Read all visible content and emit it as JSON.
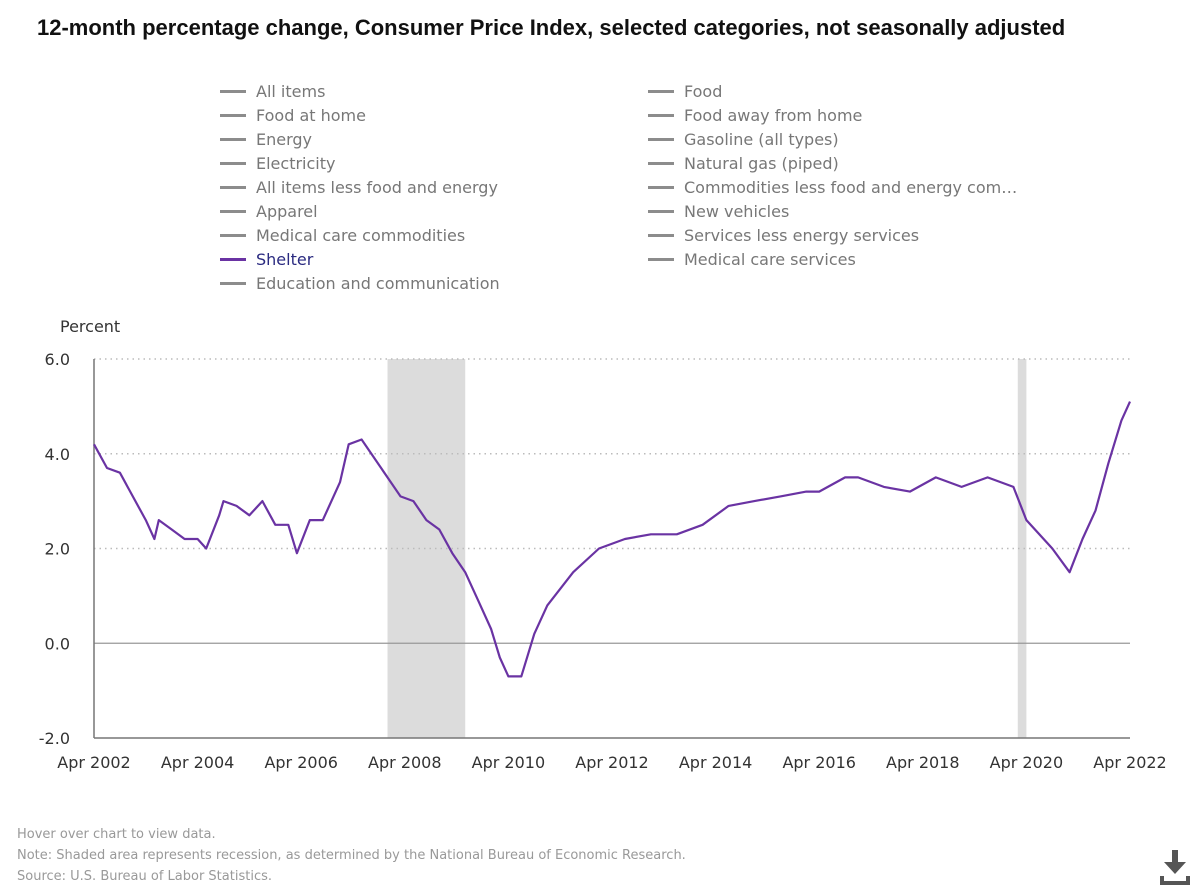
{
  "title": "12-month percentage change, Consumer Price Index, selected categories, not seasonally adjusted",
  "legend": {
    "col1": [
      {
        "label": "All items",
        "active": false
      },
      {
        "label": "Food at home",
        "active": false
      },
      {
        "label": "Energy",
        "active": false
      },
      {
        "label": "Electricity",
        "active": false
      },
      {
        "label": "All items less food and energy",
        "active": false
      },
      {
        "label": "Apparel",
        "active": false
      },
      {
        "label": "Medical care commodities",
        "active": false
      },
      {
        "label": "Shelter",
        "active": true
      },
      {
        "label": "Education and communication",
        "active": false
      }
    ],
    "col2": [
      {
        "label": "Food",
        "active": false
      },
      {
        "label": "Food away from home",
        "active": false
      },
      {
        "label": "Gasoline (all types)",
        "active": false
      },
      {
        "label": "Natural gas (piped)",
        "active": false
      },
      {
        "label": "Commodities less food and energy com…",
        "active": false
      },
      {
        "label": "New vehicles",
        "active": false
      },
      {
        "label": "Services less energy services",
        "active": false
      },
      {
        "label": "Medical care services",
        "active": false
      }
    ]
  },
  "colors": {
    "active_series": "#6a33a3",
    "inactive_legend": "#8c8c8c",
    "recession": "#dcdcdc",
    "grid": "#bbbbbb"
  },
  "chart_data": {
    "type": "line",
    "ylabel": "Percent",
    "ylim": [
      -2.0,
      6.0
    ],
    "yticks": [
      "-2.0",
      "0.0",
      "2.0",
      "4.0",
      "6.0"
    ],
    "xticks": [
      "Apr 2002",
      "Apr 2004",
      "Apr 2006",
      "Apr 2008",
      "Apr 2010",
      "Apr 2012",
      "Apr 2014",
      "Apr 2016",
      "Apr 2018",
      "Apr 2020",
      "Apr 2022"
    ],
    "xrange": [
      "Apr 2002",
      "Apr 2022"
    ],
    "grid": "horizontal dotted",
    "recessions": [
      {
        "start": "Dec 2007",
        "end": "Jun 2009"
      },
      {
        "start": "Feb 2020",
        "end": "Apr 2020"
      }
    ],
    "series": [
      {
        "name": "Shelter",
        "points": [
          [
            "2002-04",
            4.2
          ],
          [
            "2002-07",
            3.7
          ],
          [
            "2002-10",
            3.6
          ],
          [
            "2003-01",
            3.1
          ],
          [
            "2003-04",
            2.6
          ],
          [
            "2003-06",
            2.2
          ],
          [
            "2003-07",
            2.6
          ],
          [
            "2003-10",
            2.4
          ],
          [
            "2004-01",
            2.2
          ],
          [
            "2004-04",
            2.2
          ],
          [
            "2004-06",
            2.0
          ],
          [
            "2004-09",
            2.7
          ],
          [
            "2004-10",
            3.0
          ],
          [
            "2005-01",
            2.9
          ],
          [
            "2005-04",
            2.7
          ],
          [
            "2005-07",
            3.0
          ],
          [
            "2005-10",
            2.5
          ],
          [
            "2006-01",
            2.5
          ],
          [
            "2006-03",
            1.9
          ],
          [
            "2006-06",
            2.6
          ],
          [
            "2006-09",
            2.6
          ],
          [
            "2007-01",
            3.4
          ],
          [
            "2007-03",
            4.2
          ],
          [
            "2007-06",
            4.3
          ],
          [
            "2007-09",
            3.9
          ],
          [
            "2007-12",
            3.5
          ],
          [
            "2008-03",
            3.1
          ],
          [
            "2008-06",
            3.0
          ],
          [
            "2008-09",
            2.6
          ],
          [
            "2008-12",
            2.4
          ],
          [
            "2009-03",
            1.9
          ],
          [
            "2009-06",
            1.5
          ],
          [
            "2009-09",
            0.9
          ],
          [
            "2009-12",
            0.3
          ],
          [
            "2010-02",
            -0.3
          ],
          [
            "2010-04",
            -0.7
          ],
          [
            "2010-07",
            -0.7
          ],
          [
            "2010-10",
            0.2
          ],
          [
            "2011-01",
            0.8
          ],
          [
            "2011-07",
            1.5
          ],
          [
            "2012-01",
            2.0
          ],
          [
            "2012-07",
            2.2
          ],
          [
            "2013-01",
            2.3
          ],
          [
            "2013-07",
            2.3
          ],
          [
            "2014-01",
            2.5
          ],
          [
            "2014-07",
            2.9
          ],
          [
            "2015-01",
            3.0
          ],
          [
            "2015-07",
            3.1
          ],
          [
            "2016-01",
            3.2
          ],
          [
            "2016-04",
            3.2
          ],
          [
            "2016-10",
            3.5
          ],
          [
            "2017-01",
            3.5
          ],
          [
            "2017-07",
            3.3
          ],
          [
            "2018-01",
            3.2
          ],
          [
            "2018-07",
            3.5
          ],
          [
            "2019-01",
            3.3
          ],
          [
            "2019-07",
            3.5
          ],
          [
            "2020-01",
            3.3
          ],
          [
            "2020-04",
            2.6
          ],
          [
            "2020-07",
            2.3
          ],
          [
            "2020-10",
            2.0
          ],
          [
            "2021-02",
            1.5
          ],
          [
            "2021-05",
            2.2
          ],
          [
            "2021-08",
            2.8
          ],
          [
            "2021-11",
            3.8
          ],
          [
            "2022-02",
            4.7
          ],
          [
            "2022-04",
            5.1
          ]
        ]
      }
    ]
  },
  "footer": {
    "hover": "Hover over chart to view data.",
    "note": "Note: Shaded area represents recession, as determined by the National Bureau of Economic Research.",
    "source": "Source: U.S. Bureau of Labor Statistics."
  },
  "download_icon": "download-icon"
}
